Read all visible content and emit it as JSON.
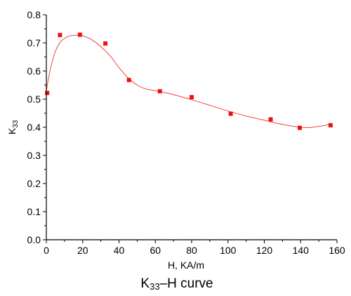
{
  "chart_data": {
    "type": "scatter",
    "title": "K33–H curve",
    "xlabel": "H, KA/m",
    "ylabel": "K33",
    "xlim": [
      0,
      160
    ],
    "ylim": [
      0.0,
      0.8
    ],
    "x_ticks": [
      "0",
      "20",
      "40",
      "60",
      "80",
      "100",
      "120",
      "140",
      "160"
    ],
    "y_ticks": [
      "0.0",
      "0.1",
      "0.2",
      "0.3",
      "0.4",
      "0.5",
      "0.6",
      "0.7",
      "0.8"
    ],
    "grid": false,
    "series": [
      {
        "marker": "square",
        "color": "#ee1111",
        "x": [
          0.5,
          7.5,
          18.5,
          32.5,
          45.5,
          62.5,
          80,
          101.5,
          123.5,
          139.5,
          156.5
        ],
        "y": [
          0.522,
          0.728,
          0.729,
          0.698,
          0.568,
          0.528,
          0.507,
          0.448,
          0.428,
          0.398,
          0.407
        ]
      }
    ],
    "fit_curve": {
      "color": "#ee4444",
      "x": [
        0,
        2,
        5,
        8,
        12,
        16,
        20,
        24,
        28,
        32,
        36,
        40,
        45,
        50,
        55,
        62,
        70,
        80,
        90,
        100,
        110,
        120,
        130,
        140,
        145,
        150,
        156
      ],
      "y": [
        0.53,
        0.6,
        0.67,
        0.705,
        0.723,
        0.727,
        0.725,
        0.715,
        0.698,
        0.675,
        0.647,
        0.612,
        0.576,
        0.55,
        0.536,
        0.528,
        0.516,
        0.498,
        0.478,
        0.458,
        0.44,
        0.425,
        0.41,
        0.4,
        0.399,
        0.403,
        0.41
      ]
    }
  }
}
